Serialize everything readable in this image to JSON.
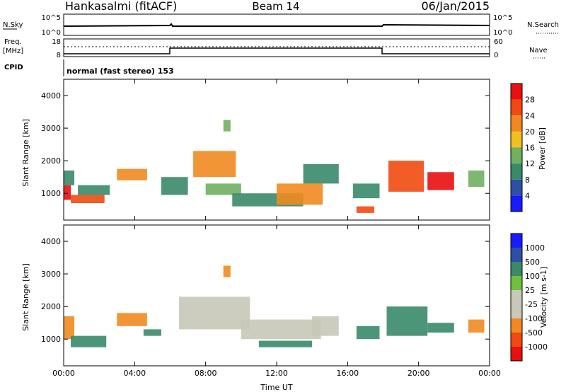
{
  "header": {
    "station": "Hankasalmi (fitACF)",
    "beam": "Beam 14",
    "date": "06/Jan/2015"
  },
  "top_panels": {
    "nsky_label": "N.Sky",
    "nsky_ticks": [
      "10^5",
      "10^0"
    ],
    "nsearch_label": "N.Search",
    "nsearch_ticks": [
      "10^5",
      "10^0"
    ],
    "freq_label": "Freq.",
    "freq_unit": "[MHz]",
    "freq_ticks": [
      "18",
      "8"
    ],
    "nave_label": "Nave",
    "nave_ticks": [
      "60",
      "0"
    ],
    "cpid_label": "CPID",
    "cpid_text": "normal (fast stereo) 153"
  },
  "colors": {
    "power": [
      "#1a1aff",
      "#2e4fa6",
      "#3a8a6a",
      "#70b060",
      "#f0c020",
      "#f08a20",
      "#f04a10",
      "#e81010"
    ],
    "velocity": [
      "#e81010",
      "#f04a10",
      "#f08a20",
      "#c8c8b8",
      "#c8c8b8",
      "#70c040",
      "#3a8a6a",
      "#2e4fa6",
      "#1a1aff"
    ]
  },
  "chart_data": [
    {
      "type": "heatmap",
      "name": "power",
      "xlabel": "",
      "ylabel": "Slant Range [km]",
      "xlim": [
        0,
        24
      ],
      "ylim": [
        180,
        4500
      ],
      "yticks": [
        1000,
        2000,
        3000,
        4000
      ],
      "colorbar_label": "Power [dB]",
      "colorbar_ticks": [
        "4",
        "8",
        "12",
        "16",
        "20",
        "24",
        "28"
      ],
      "colorbar_range": [
        0,
        32
      ],
      "regions": [
        {
          "t0": 0.0,
          "t1": 0.4,
          "r0": 800,
          "r1": 1250,
          "v": 28
        },
        {
          "t0": 0.0,
          "t1": 0.6,
          "r0": 1250,
          "r1": 1700,
          "v": 10
        },
        {
          "t0": 0.4,
          "t1": 2.3,
          "r0": 700,
          "r1": 950,
          "v": 26
        },
        {
          "t0": 0.8,
          "t1": 2.6,
          "r0": 950,
          "r1": 1250,
          "v": 8
        },
        {
          "t0": 3.0,
          "t1": 4.7,
          "r0": 1400,
          "r1": 1750,
          "v": 20
        },
        {
          "t0": 5.5,
          "t1": 7.0,
          "r0": 950,
          "r1": 1500,
          "v": 10
        },
        {
          "t0": 7.3,
          "t1": 9.7,
          "r0": 1500,
          "r1": 2300,
          "v": 20
        },
        {
          "t0": 8.0,
          "t1": 10.0,
          "r0": 950,
          "r1": 1300,
          "v": 14
        },
        {
          "t0": 9.0,
          "t1": 9.4,
          "r0": 2900,
          "r1": 3250,
          "v": 12
        },
        {
          "t0": 9.5,
          "t1": 13.5,
          "r0": 600,
          "r1": 1000,
          "v": 8
        },
        {
          "t0": 12.0,
          "t1": 14.6,
          "r0": 650,
          "r1": 1300,
          "v": 22
        },
        {
          "t0": 13.5,
          "t1": 15.5,
          "r0": 1300,
          "r1": 1900,
          "v": 10
        },
        {
          "t0": 16.3,
          "t1": 17.8,
          "r0": 850,
          "r1": 1300,
          "v": 9
        },
        {
          "t0": 16.5,
          "t1": 17.5,
          "r0": 400,
          "r1": 600,
          "v": 24
        },
        {
          "t0": 18.3,
          "t1": 20.3,
          "r0": 1050,
          "r1": 2000,
          "v": 27
        },
        {
          "t0": 20.5,
          "t1": 22.0,
          "r0": 1100,
          "r1": 1650,
          "v": 28
        },
        {
          "t0": 22.8,
          "t1": 23.7,
          "r0": 1200,
          "r1": 1700,
          "v": 14
        }
      ]
    },
    {
      "type": "heatmap",
      "name": "velocity",
      "xlabel": "Time UT",
      "ylabel": "Slant Range [km]",
      "xlim": [
        0,
        24
      ],
      "ylim": [
        180,
        4500
      ],
      "xticks": [
        "00:00",
        "04:00",
        "08:00",
        "12:00",
        "16:00",
        "20:00",
        "00:00"
      ],
      "yticks": [
        1000,
        2000,
        3000,
        4000
      ],
      "colorbar_label": "Velocity [m s-1]",
      "colorbar_ticks": [
        "-1000",
        "-500",
        "-100",
        "-25",
        "25",
        "100",
        "500",
        "1000"
      ],
      "regions": [
        {
          "t0": 0.0,
          "t1": 0.6,
          "r0": 1000,
          "r1": 1700,
          "v": -300
        },
        {
          "t0": 0.4,
          "t1": 2.4,
          "r0": 750,
          "r1": 1100,
          "v": 150
        },
        {
          "t0": 3.0,
          "t1": 4.7,
          "r0": 1400,
          "r1": 1800,
          "v": -400
        },
        {
          "t0": 4.5,
          "t1": 5.5,
          "r0": 1100,
          "r1": 1300,
          "v": 120
        },
        {
          "t0": 6.5,
          "t1": 10.5,
          "r0": 1300,
          "r1": 2300,
          "v": 0
        },
        {
          "t0": 9.0,
          "t1": 9.4,
          "r0": 2900,
          "r1": 3250,
          "v": -400
        },
        {
          "t0": 10.0,
          "t1": 14.5,
          "r0": 1000,
          "r1": 1600,
          "v": 0
        },
        {
          "t0": 11.0,
          "t1": 14.0,
          "r0": 750,
          "r1": 950,
          "v": 150
        },
        {
          "t0": 14.0,
          "t1": 15.5,
          "r0": 1100,
          "r1": 1700,
          "v": 0
        },
        {
          "t0": 16.5,
          "t1": 17.8,
          "r0": 1000,
          "r1": 1400,
          "v": 300
        },
        {
          "t0": 18.2,
          "t1": 20.5,
          "r0": 1100,
          "r1": 2000,
          "v": 120
        },
        {
          "t0": 20.5,
          "t1": 22.0,
          "r0": 1200,
          "r1": 1500,
          "v": 250
        },
        {
          "t0": 22.8,
          "t1": 23.7,
          "r0": 1200,
          "r1": 1600,
          "v": -300
        }
      ]
    }
  ]
}
